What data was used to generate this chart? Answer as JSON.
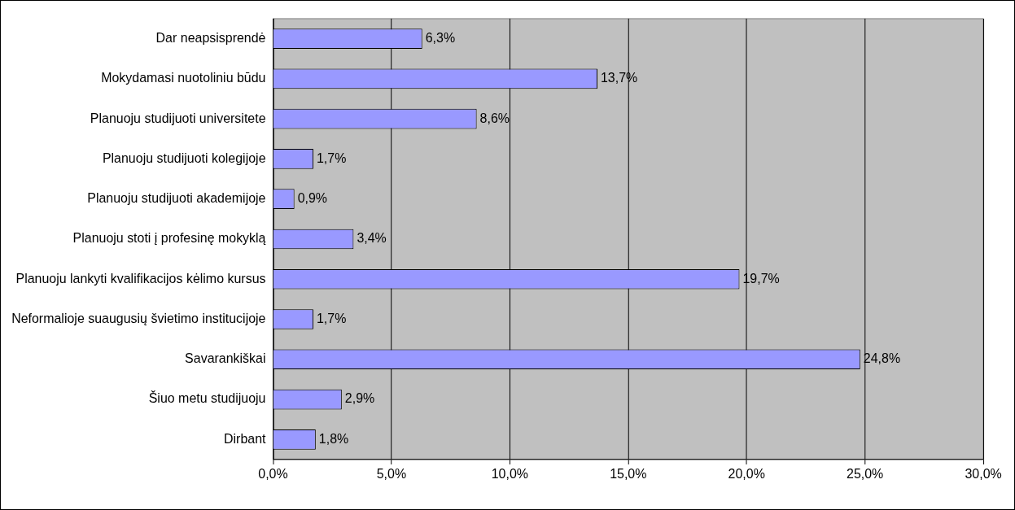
{
  "chart_data": {
    "type": "bar",
    "orientation": "horizontal",
    "categories": [
      "Dar neapsisprendė",
      "Mokydamasi nuotoliniu būdu",
      "Planuoju studijuoti universitete",
      "Planuoju studijuoti kolegijoje",
      "Planuoju studijuoti akademijoje",
      "Planuoju stoti į profesinę mokyklą",
      "Planuoju lankyti kvalifikacijos kėlimo kursus",
      "Neformalioje suaugusių švietimo institucijoje",
      "Savarankiškai",
      "Šiuo metu studijuoju",
      "Dirbant"
    ],
    "values": [
      6.3,
      13.7,
      8.6,
      1.7,
      0.9,
      3.4,
      19.7,
      1.7,
      24.8,
      2.9,
      1.8
    ],
    "color": "#9999ff",
    "value_labels": [
      "6,3%",
      "13,7%",
      "8,6%",
      "1,7%",
      "0,9%",
      "3,4%",
      "19,7%",
      "1,7%",
      "24,8%",
      "2,9%",
      "1,8%"
    ],
    "xlim": [
      0,
      30
    ],
    "xticks": [
      {
        "value": 0,
        "label": "0,0%"
      },
      {
        "value": 5,
        "label": "5,0%"
      },
      {
        "value": 10,
        "label": "10,0%"
      },
      {
        "value": 15,
        "label": "15,0%"
      },
      {
        "value": 20,
        "label": "20,0%"
      },
      {
        "value": 25,
        "label": "25,0%"
      },
      {
        "value": 30,
        "label": "30,0%"
      }
    ],
    "grid": "x",
    "legend": false
  }
}
